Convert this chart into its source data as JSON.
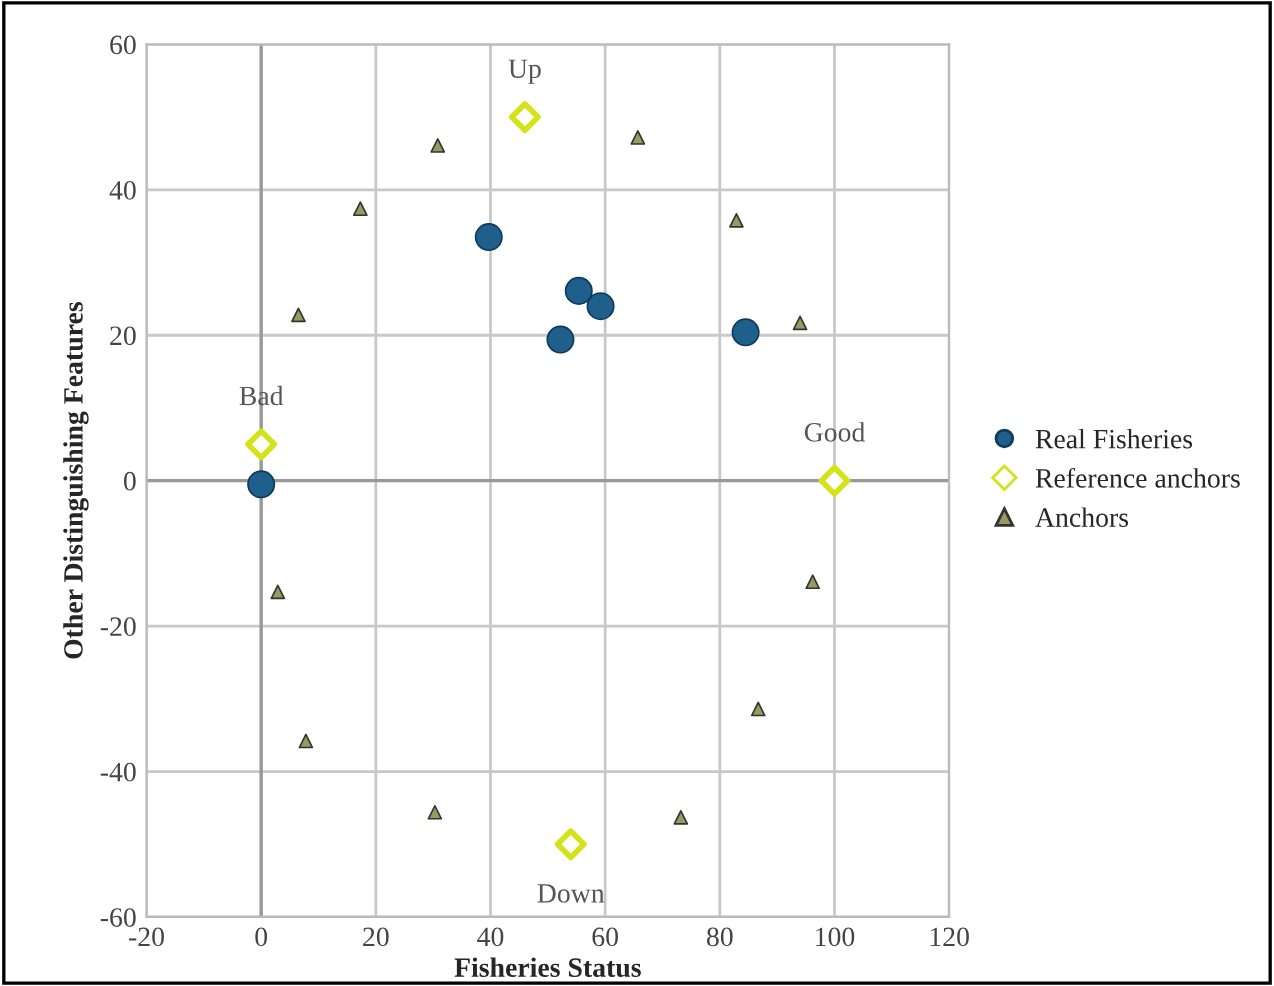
{
  "chart_data": {
    "type": "scatter",
    "xlabel": "Fisheries Status",
    "ylabel": "Other Distinguishing Features",
    "xlim": [
      -20,
      120
    ],
    "ylim": [
      -60,
      60
    ],
    "xticks": [
      -20,
      0,
      20,
      40,
      60,
      80,
      100,
      120
    ],
    "yticks": [
      -60,
      -40,
      -20,
      0,
      20,
      40,
      60
    ],
    "grid": true,
    "legend": "right",
    "series": [
      {
        "name": "Real Fisheries",
        "color": "#1f5f8b",
        "marker": "circle",
        "x": [
          0,
          39.7,
          55.4,
          59.2,
          52.2,
          84.5
        ],
        "values": [
          -0.5,
          33.5,
          26.1,
          24.0,
          19.4,
          20.4
        ]
      },
      {
        "name": "Reference anchors",
        "color": "#d4e21a",
        "marker": "diamond",
        "x": [
          0,
          46,
          100,
          54
        ],
        "values": [
          5,
          50,
          0,
          -50
        ]
      },
      {
        "name": "Anchors",
        "color": "#9a9a60",
        "marker": "triangle",
        "x": [
          30.8,
          65.7,
          17.3,
          82.9,
          6.5,
          94,
          2.9,
          96.2,
          7.8,
          86.7,
          30.3,
          73.2
        ],
        "values": [
          46.1,
          47.2,
          37.4,
          35.8,
          22.8,
          21.7,
          -15.3,
          -13.9,
          -35.8,
          -31.4,
          -45.6,
          -46.3
        ]
      }
    ],
    "annotations": [
      {
        "text": "Bad",
        "x": 0,
        "y": 5
      },
      {
        "text": "Up",
        "x": 46,
        "y": 50
      },
      {
        "text": "Good",
        "x": 100,
        "y": 0
      },
      {
        "text": "Down",
        "x": 54,
        "y": -50
      }
    ]
  }
}
